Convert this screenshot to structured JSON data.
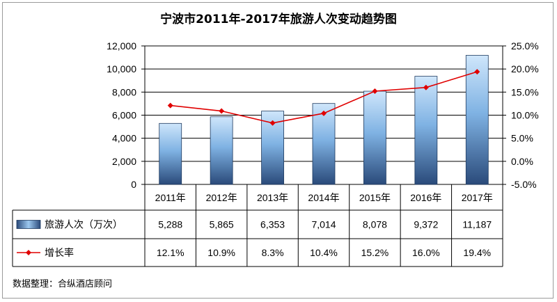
{
  "chart_data": {
    "type": "bar",
    "title": "宁波市2011年-2017年旅游人次变动趋势图",
    "categories": [
      "2011年",
      "2012年",
      "2013年",
      "2014年",
      "2015年",
      "2016年",
      "2017年"
    ],
    "series": [
      {
        "name": "旅游人次（万次）",
        "type": "bar",
        "axis": "left",
        "values": [
          5288,
          5865,
          6353,
          7014,
          8078,
          9372,
          11187
        ],
        "labels": [
          "5,288",
          "5,865",
          "6,353",
          "7,014",
          "8,078",
          "9,372",
          "11,187"
        ]
      },
      {
        "name": "增长率",
        "type": "line",
        "axis": "right",
        "values": [
          12.1,
          10.9,
          8.3,
          10.4,
          15.2,
          16.0,
          19.4
        ],
        "labels": [
          "12.1%",
          "10.9%",
          "8.3%",
          "10.4%",
          "15.2%",
          "16.0%",
          "19.4%"
        ]
      }
    ],
    "y_left": {
      "min": 0,
      "max": 12000,
      "ticks": [
        "0",
        "2,000",
        "4,000",
        "6,000",
        "8,000",
        "10,000",
        "12,000"
      ]
    },
    "y_right": {
      "min": -5,
      "max": 25,
      "ticks": [
        "-5.0%",
        "0.0%",
        "5.0%",
        "10.0%",
        "15.0%",
        "20.0%",
        "25.0%"
      ]
    },
    "grid": true,
    "legend": "data-table",
    "colors": {
      "bar_top": "#cfe6fb",
      "bar_bottom": "#2a4a7a",
      "line": "#e00000",
      "grid": "#000000"
    }
  },
  "source_note": "数据整理：合纵酒店顾问"
}
